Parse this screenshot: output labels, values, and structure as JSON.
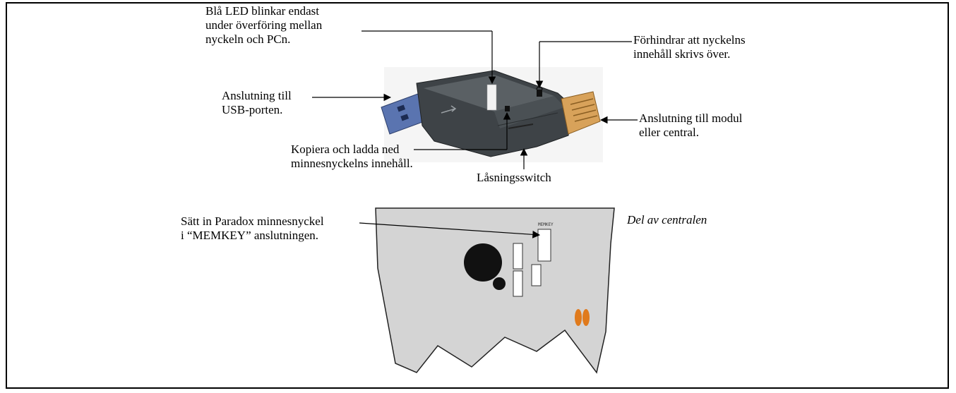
{
  "labels": {
    "led": [
      "Blå LED blinkar endast",
      "under överföring mellan",
      "nyckeln och PCn."
    ],
    "protect": [
      "Förhindrar att nyckelns",
      "innehåll skrivs över."
    ],
    "usb": [
      "Anslutning till",
      "USB-porten."
    ],
    "module": [
      "Anslutning till modul",
      "eller central."
    ],
    "copy": [
      "Kopiera och ladda ned",
      "minnesnyckelns innehåll."
    ],
    "lock_switch": "Låsningsswitch",
    "insert": [
      "Sätt in Paradox minnesnyckel",
      "i “MEMKEY” anslutningen."
    ],
    "panel_part": "Del av centralen",
    "board_connector": "MEMKEY"
  },
  "colors": {
    "usb_metal": "#5a74b0",
    "body": "#3e4347",
    "body_light": "#5a6064",
    "connector": "#d8a25a",
    "board": "#d4d4d4",
    "led": "#f2f2f2",
    "orange": "#e07a1c"
  }
}
